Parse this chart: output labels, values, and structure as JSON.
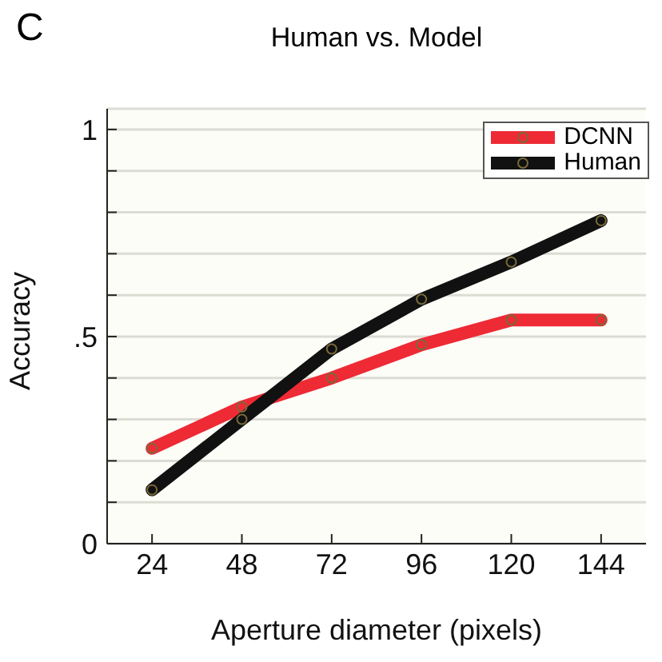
{
  "chart_data": {
    "type": "line",
    "title": "Human vs. Model",
    "annotations": [
      "C"
    ],
    "xlabel": "Aperture diameter (pixels)",
    "ylabel": "Accuracy",
    "x": [
      24,
      48,
      72,
      96,
      120,
      144
    ],
    "series": [
      {
        "name": "DCNN",
        "color": "#ee2a35",
        "values": [
          0.23,
          0.33,
          0.4,
          0.48,
          0.54,
          0.54
        ]
      },
      {
        "name": "Human",
        "color": "#111111",
        "values": [
          0.13,
          0.3,
          0.47,
          0.59,
          0.68,
          0.78
        ]
      }
    ],
    "xlim": [
      12,
      156
    ],
    "xticks": [
      24,
      48,
      72,
      96,
      120,
      144
    ],
    "ylim": [
      0,
      1.05
    ],
    "yticks": [
      {
        "value": 0,
        "label": "0"
      },
      {
        "value": 0.1,
        "label": null
      },
      {
        "value": 0.2,
        "label": null
      },
      {
        "value": 0.3,
        "label": null
      },
      {
        "value": 0.4,
        "label": null
      },
      {
        "value": 0.5,
        "label": ".5"
      },
      {
        "value": 0.6,
        "label": null
      },
      {
        "value": 0.7,
        "label": null
      },
      {
        "value": 0.8,
        "label": null
      },
      {
        "value": 0.9,
        "label": null
      },
      {
        "value": 1,
        "label": "1"
      }
    ],
    "grid": "y",
    "legend": "top right",
    "marker": "circle",
    "line_style": "solid"
  }
}
